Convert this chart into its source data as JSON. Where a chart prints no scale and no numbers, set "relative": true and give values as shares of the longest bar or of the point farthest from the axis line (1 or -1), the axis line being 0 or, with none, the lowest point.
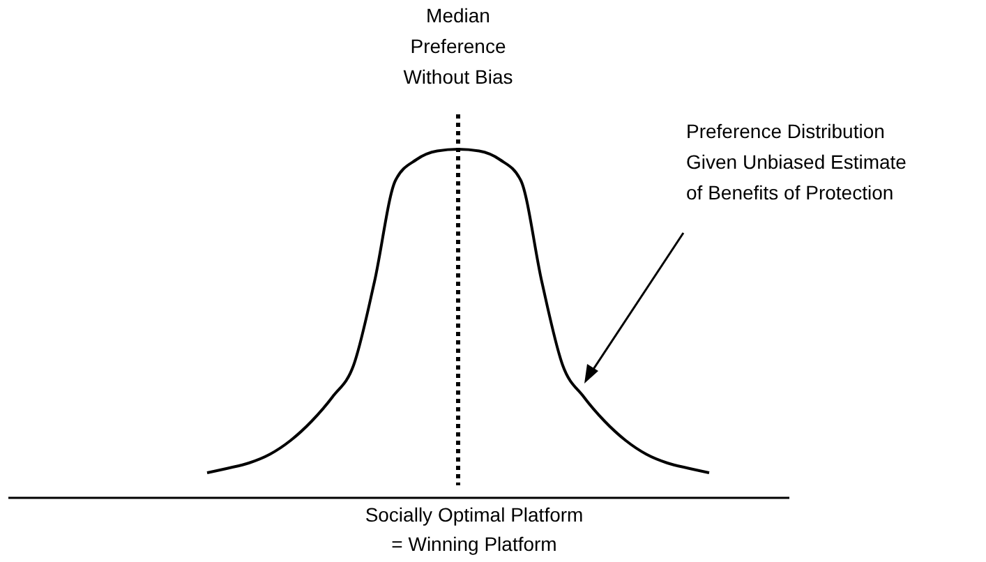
{
  "chart_data": {
    "type": "line",
    "relative": true,
    "marker": "none",
    "line_style": "solid",
    "xlabel": "Socially Optimal Platform\n= Winning Platform",
    "categories": [
      null,
      null,
      null,
      null,
      null,
      null,
      null,
      null,
      null,
      null,
      null,
      null,
      null,
      null,
      null,
      null,
      null,
      null,
      null,
      null,
      null,
      null,
      null,
      null,
      null
    ],
    "series": [
      {
        "color": "#000000",
        "values": [
          0.072,
          0.085,
          0.1,
          0.125,
          0.165,
          0.22,
          0.29,
          0.38,
          0.62,
          0.91,
          0.97,
          0.995,
          1,
          0.995,
          0.97,
          0.91,
          0.62,
          0.38,
          0.29,
          0.22,
          0.165,
          0.125,
          0.1,
          0.085,
          0.072
        ]
      }
    ],
    "annotations": [
      "Median\nPreference\nWithout Bias",
      "Preference Distribution\nGiven Unbiased Estimate\nof Benefits of Protection"
    ]
  }
}
